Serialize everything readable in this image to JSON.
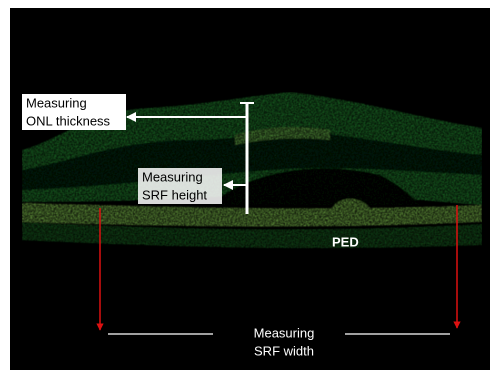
{
  "annotations": {
    "onl_thickness": [
      "Measuring",
      "ONL thickness"
    ],
    "srf_height": [
      "Measuring",
      "SRF height"
    ],
    "ped": "PED",
    "srf_width": [
      "Measuring",
      "SRF width"
    ]
  }
}
